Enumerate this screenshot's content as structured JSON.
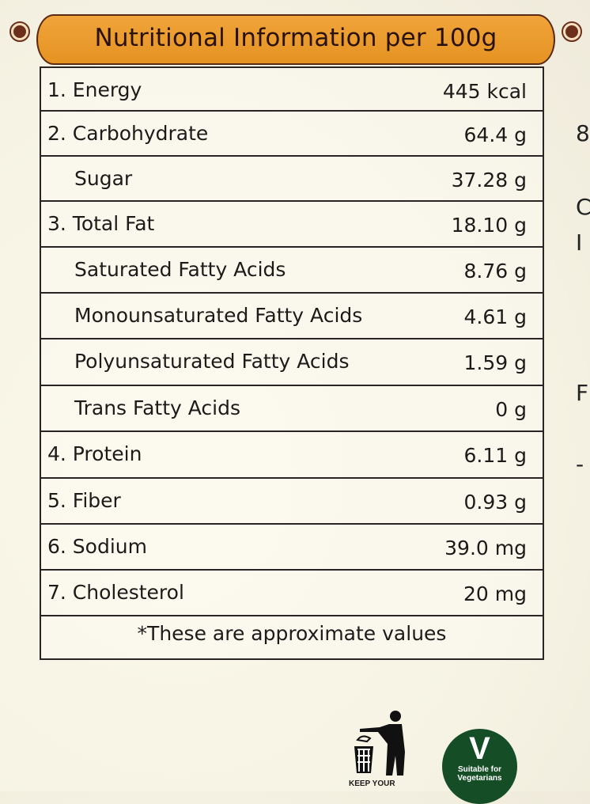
{
  "header": {
    "title": "Nutritional Information per 100g",
    "color": "#e8982a"
  },
  "rows": [
    {
      "label": "1. Energy",
      "value": "445 kcal",
      "indent": false
    },
    {
      "label": "2. Carbohydrate",
      "value": "64.4 g",
      "indent": false
    },
    {
      "label": "Sugar",
      "value": "37.28 g",
      "indent": true
    },
    {
      "label": "3. Total Fat",
      "value": "18.10 g",
      "indent": false
    },
    {
      "label": "Saturated Fatty Acids",
      "value": "8.76 g",
      "indent": true
    },
    {
      "label": "Monounsaturated Fatty Acids",
      "value": "4.61 g",
      "indent": true
    },
    {
      "label": "Polyunsaturated Fatty Acids",
      "value": "1.59 g",
      "indent": true
    },
    {
      "label": "Trans Fatty Acids",
      "value": "0 g",
      "indent": true
    },
    {
      "label": "4. Protein",
      "value": "6.11 g",
      "indent": false
    },
    {
      "label": "5. Fiber",
      "value": "0.93 g",
      "indent": false
    },
    {
      "label": "6. Sodium",
      "value": "39.0 mg",
      "indent": false
    },
    {
      "label": "7. Cholesterol",
      "value": "20 mg",
      "indent": false
    }
  ],
  "footnote": "*These are approximate values",
  "edge_fragments": [
    "8",
    "C",
    "I",
    "F",
    "-"
  ],
  "logos": {
    "keep_clean": "KEEP YOUR",
    "vegetarian_mark": "V",
    "vegetarian_text": "Suitable for Vegetarians",
    "vegetarian_color": "#144d26"
  }
}
